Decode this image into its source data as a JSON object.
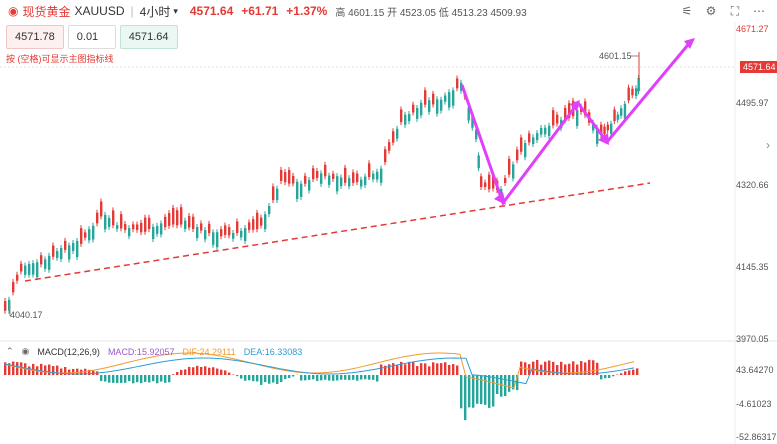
{
  "header": {
    "title": "现货黄金",
    "code": "XAUUSD",
    "timeframe": "4小时",
    "price": "4571.64",
    "change": "+61.71",
    "change_pct": "+1.37%",
    "high_label": "高",
    "high": "4601.15",
    "open_label": "开",
    "open": "4523.05",
    "low_label": "低",
    "low": "4513.23",
    "close": "4509.93"
  },
  "order": {
    "bid": "4571.78",
    "qty": "0.01",
    "ask": "4571.64"
  },
  "hint": "按 (空格)可显示主图指标线",
  "price_axis": [
    "4671.27",
    "4571.64",
    "4495.97",
    "4320.66",
    "4145.35",
    "3970.05"
  ],
  "markers": {
    "high": "4601.15",
    "low": "4040.17"
  },
  "macd": {
    "name": "MACD(12,26,9)",
    "macd": "MACD:15.92057",
    "dif": "DIF:24.29111",
    "dea": "DEA:16.33083",
    "axis": [
      "43.64270",
      "-4.61023",
      "-52.86317"
    ]
  },
  "colors": {
    "up": "#e53935",
    "down": "#26a69a",
    "arrow": "#e040fb",
    "trend": "#e53935"
  }
}
